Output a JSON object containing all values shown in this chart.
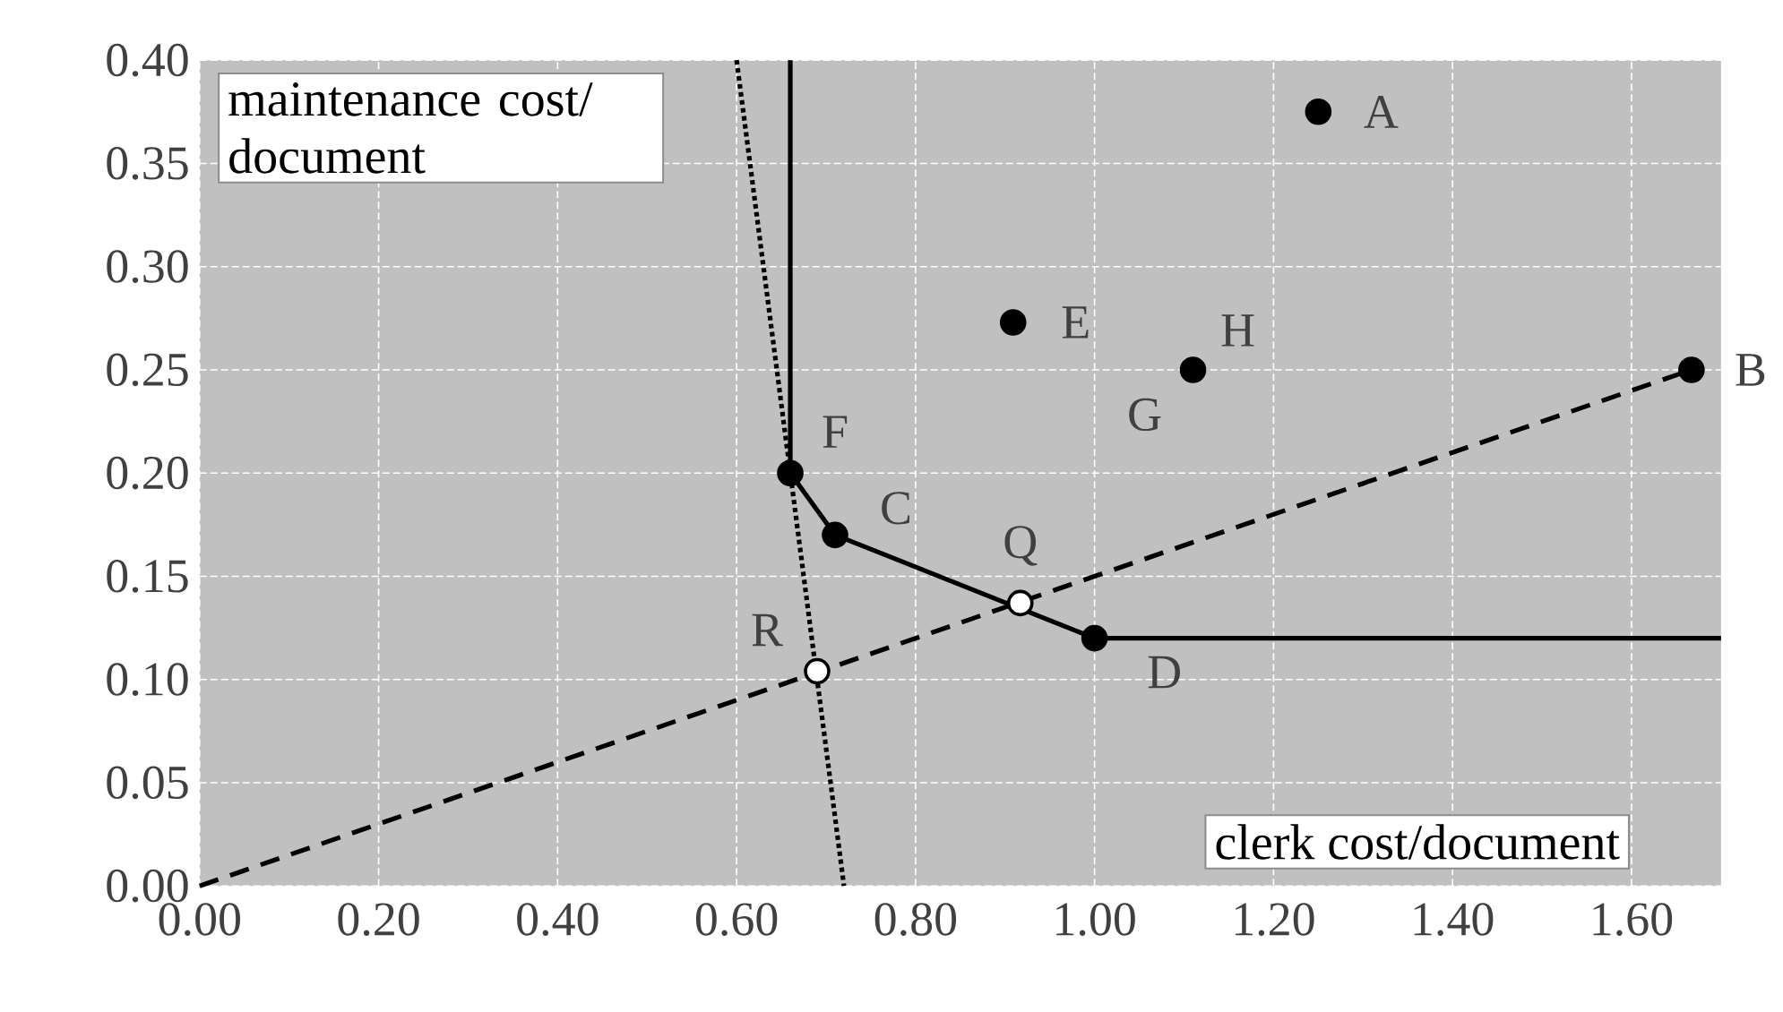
{
  "chart_data": {
    "type": "scatter",
    "xlabel": "clerk cost/document",
    "ylabel": "maintenance cost/ document",
    "xlim": [
      0,
      1.7
    ],
    "ylim": [
      0,
      0.4
    ],
    "xticks": [
      {
        "value": 0,
        "label": "0.00"
      },
      {
        "value": 0.2,
        "label": "0.20"
      },
      {
        "value": 0.4,
        "label": "0.40"
      },
      {
        "value": 0.6,
        "label": "0.60"
      },
      {
        "value": 0.8,
        "label": "0.80"
      },
      {
        "value": 1.0,
        "label": "1.00"
      },
      {
        "value": 1.2,
        "label": "1.20"
      },
      {
        "value": 1.4,
        "label": "1.40"
      },
      {
        "value": 1.6,
        "label": "1.60"
      }
    ],
    "yticks": [
      {
        "value": 0,
        "label": "0.00"
      },
      {
        "value": 0.05,
        "label": "0.05"
      },
      {
        "value": 0.1,
        "label": "0.10"
      },
      {
        "value": 0.15,
        "label": "0.15"
      },
      {
        "value": 0.2,
        "label": "0.20"
      },
      {
        "value": 0.25,
        "label": "0.25"
      },
      {
        "value": 0.3,
        "label": "0.30"
      },
      {
        "value": 0.35,
        "label": "0.35"
      },
      {
        "value": 0.4,
        "label": "0.40"
      }
    ],
    "grid": true,
    "series": [
      {
        "type": "line",
        "color": "#000000",
        "line_style": "solid",
        "marker": "none",
        "x": [
          0.66,
          0.66,
          0.71,
          1.0,
          1.7
        ],
        "values": [
          0.4,
          0.2,
          0.17,
          0.12,
          0.12
        ]
      },
      {
        "type": "line",
        "color": "#000000",
        "line_style": "dashed",
        "marker": "none",
        "x": [
          0,
          1.667
        ],
        "values": [
          0,
          0.25
        ]
      },
      {
        "type": "line",
        "color": "#000000",
        "line_style": "dotted",
        "marker": "none",
        "x": [
          0.6,
          0.72
        ],
        "values": [
          0.4,
          0
        ]
      },
      {
        "color": "#000000",
        "marker": "circle",
        "x": [
          1.25,
          1.667,
          0.71,
          1.0,
          0.909,
          0.66,
          1.11
        ],
        "values": [
          0.375,
          0.25,
          0.17,
          0.12,
          0.273,
          0.2,
          0.25
        ]
      },
      {
        "color": "#ffffff",
        "marker": "circle",
        "x": [
          0.917,
          0.69
        ],
        "values": [
          0.137,
          0.104
        ]
      }
    ],
    "annotations": [
      {
        "text": "A",
        "x": 1.25,
        "y": 0.375
      },
      {
        "text": "B",
        "x": 1.667,
        "y": 0.25
      },
      {
        "text": "C",
        "x": 0.71,
        "y": 0.17
      },
      {
        "text": "D",
        "x": 1.0,
        "y": 0.12
      },
      {
        "text": "E",
        "x": 0.909,
        "y": 0.273
      },
      {
        "text": "F",
        "x": 0.66,
        "y": 0.2
      },
      {
        "text": "G",
        "x": 1.11,
        "y": 0.25
      },
      {
        "text": "H",
        "x": 1.11,
        "y": 0.25
      },
      {
        "text": "Q",
        "x": 0.917,
        "y": 0.137
      },
      {
        "text": "R",
        "x": 0.69,
        "y": 0.104
      }
    ]
  }
}
